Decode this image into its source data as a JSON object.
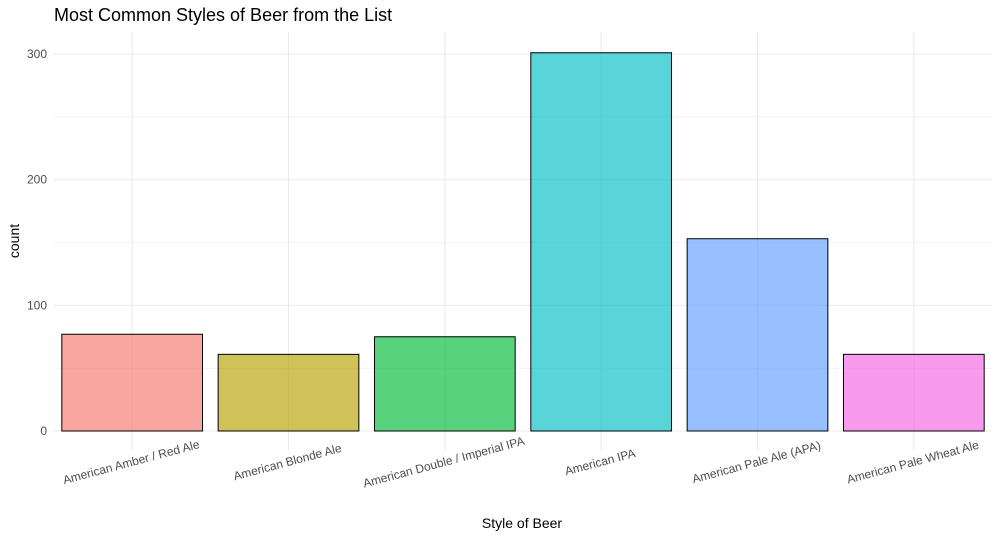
{
  "chart_data": {
    "type": "bar",
    "title": "Most Common Styles of Beer from the List",
    "xlabel": "Style of Beer",
    "ylabel": "count",
    "categories": [
      "American Amber / Red Ale",
      "American Blonde Ale",
      "American Double / Imperial IPA",
      "American IPA",
      "American Pale Ale (APA)",
      "American Pale Wheat Ale"
    ],
    "values": [
      77,
      61,
      75,
      301,
      153,
      61
    ],
    "colors": [
      "#F8766D",
      "#B79F00",
      "#00BA38",
      "#00BFC4",
      "#619CFF",
      "#F564E3"
    ],
    "ylim": [
      0,
      316
    ],
    "yticks": [
      0,
      100,
      200,
      300
    ],
    "grid": true,
    "legend": "none"
  }
}
